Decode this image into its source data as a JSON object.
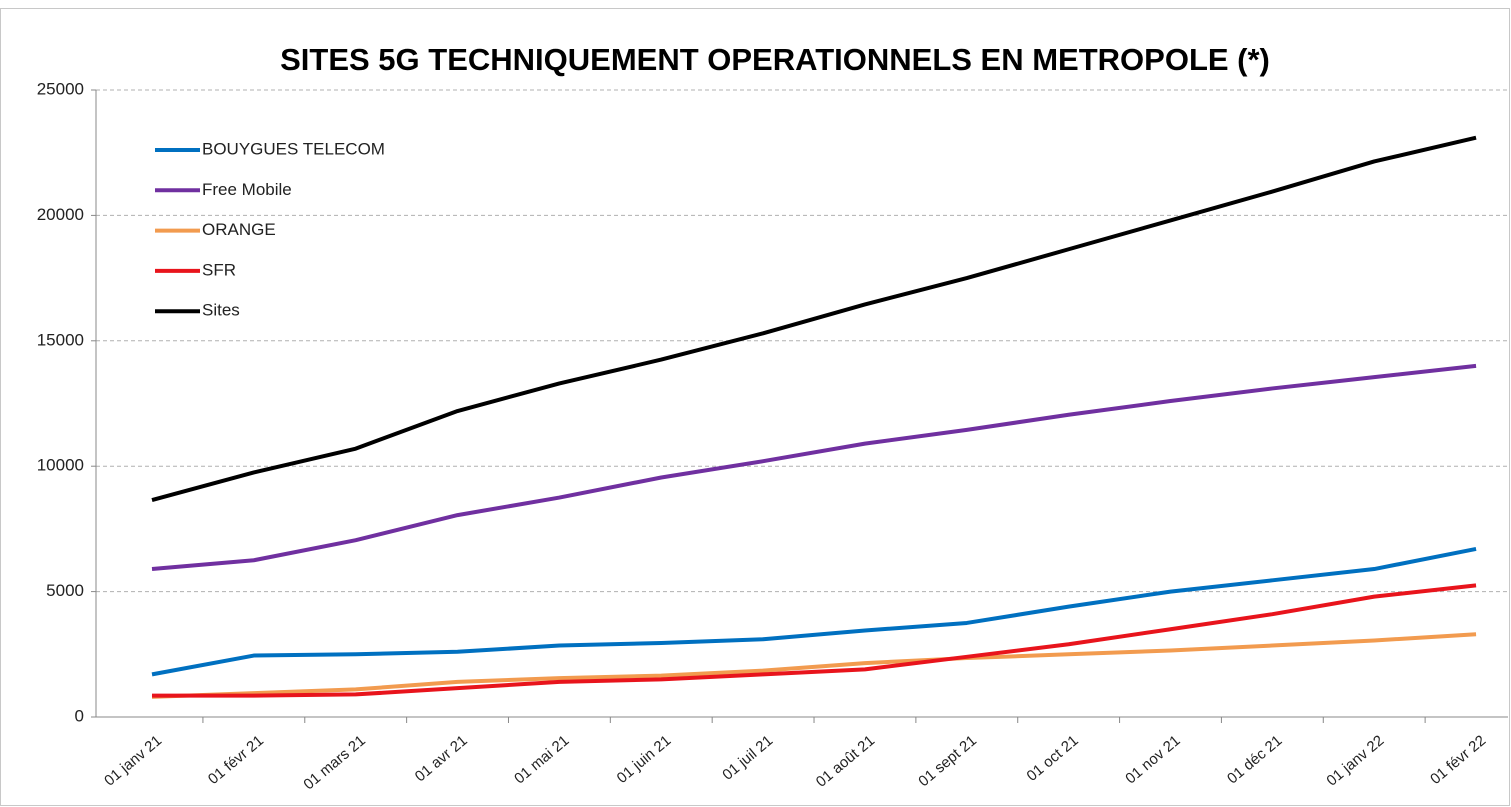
{
  "chart_data": {
    "type": "line",
    "title": "SITES 5G TECHNIQUEMENT OPERATIONNELS EN METROPOLE (*)",
    "categories": [
      "01 janv 21",
      "01 févr 21",
      "01 mars 21",
      "01 avr 21",
      "01 mai 21",
      "01 juin 21",
      "01 juil 21",
      "01 août 21",
      "01 sept 21",
      "01 oct 21",
      "01 nov 21",
      "01 déc 21",
      "01 janv 22",
      "01 févr 22"
    ],
    "series": [
      {
        "name": "BOUYGUES TELECOM",
        "color": "#0070c0",
        "values": [
          1700,
          2450,
          2500,
          2600,
          2850,
          2950,
          3100,
          3450,
          3750,
          4400,
          5000,
          5450,
          5900,
          6700
        ]
      },
      {
        "name": "Free Mobile",
        "color": "#7030a0",
        "values": [
          5900,
          6250,
          7050,
          8050,
          8750,
          9550,
          10200,
          10900,
          11450,
          12050,
          12600,
          13100,
          13550,
          14000
        ]
      },
      {
        "name": "ORANGE",
        "color": "#f29b4f",
        "values": [
          800,
          950,
          1100,
          1400,
          1550,
          1650,
          1850,
          2150,
          2350,
          2500,
          2650,
          2850,
          3050,
          3300
        ]
      },
      {
        "name": "SFR",
        "color": "#e8141c",
        "values": [
          850,
          850,
          900,
          1150,
          1400,
          1500,
          1700,
          1900,
          2400,
          2900,
          3500,
          4100,
          4800,
          5250
        ]
      },
      {
        "name": "Sites",
        "color": "#000000",
        "values": [
          8650,
          9750,
          10700,
          12200,
          13300,
          14250,
          15300,
          16450,
          17500,
          18650,
          19800,
          20950,
          22150,
          23100
        ]
      }
    ],
    "ylim": [
      0,
      25000
    ],
    "yticks": [
      0,
      5000,
      10000,
      15000,
      20000,
      25000
    ],
    "grid": true,
    "legend": "top-left"
  }
}
